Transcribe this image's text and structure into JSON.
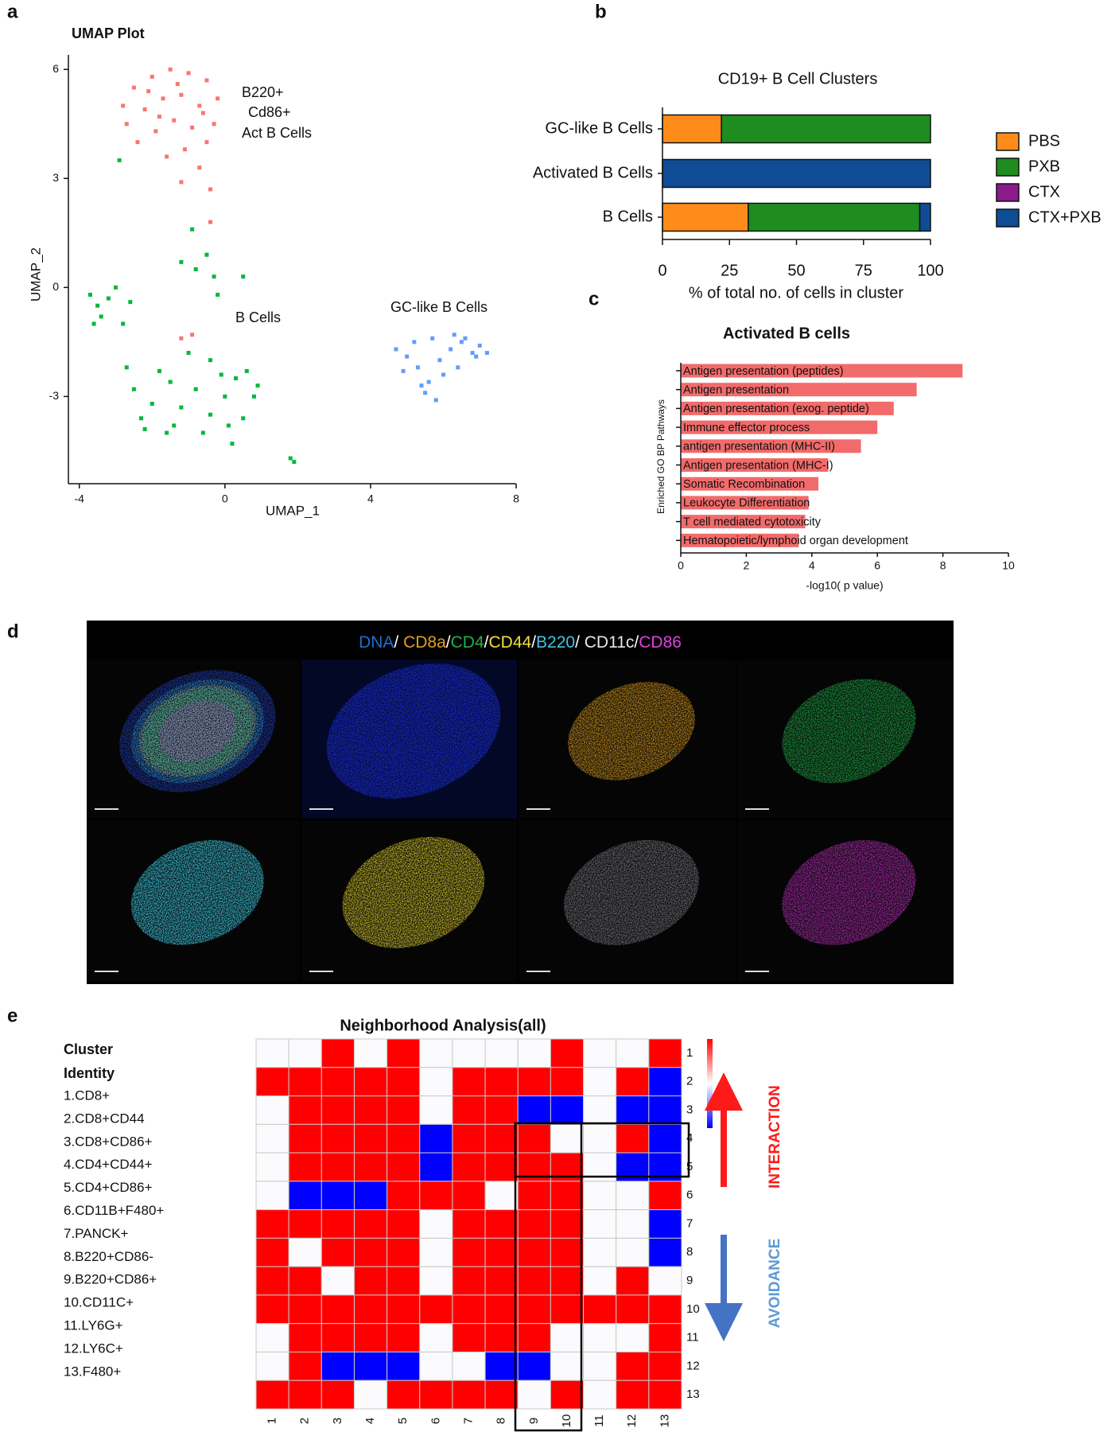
{
  "panel_labels": [
    "a",
    "b",
    "c",
    "d",
    "e"
  ],
  "chart_data": [
    {
      "type": "scatter",
      "title": "UMAP Plot",
      "x_label": "UMAP_1",
      "y_label": "UMAP_2",
      "xlim": [
        -4.3,
        8
      ],
      "ylim": [
        -5.4,
        6.4
      ],
      "xticks": [
        -4,
        0,
        4,
        8
      ],
      "yticks": [
        -3,
        0,
        3,
        6
      ],
      "annotations": [
        "B220+",
        "Cd86+",
        "Act B Cells",
        "B Cells",
        "GC-like B Cells"
      ],
      "series": [
        {
          "color": "#f8766d",
          "x": [
            -2.5,
            -2,
            -1.5,
            -1,
            -0.5,
            -0.2,
            -2.7,
            -2.2,
            -1.7,
            -1.2,
            -0.7,
            -0.3,
            -2.4,
            -1.9,
            -1.4,
            -0.9,
            -0.5,
            -1.6,
            -1.1,
            -0.7,
            -1.2,
            -0.4,
            -0.4,
            -0.9,
            -1.2,
            -2.8,
            -2.1,
            -1.3,
            -0.6,
            -1.8
          ],
          "y": [
            5.5,
            5.8,
            6,
            5.9,
            5.7,
            5.2,
            4.5,
            4.9,
            5.2,
            5.3,
            5,
            4.5,
            4,
            4.3,
            4.6,
            4.4,
            4,
            3.6,
            3.8,
            3.3,
            2.9,
            2.7,
            1.8,
            -1.3,
            -1.4,
            5,
            5.4,
            5.6,
            4.8,
            4.7
          ]
        },
        {
          "color": "#00ba38",
          "x": [
            -3.5,
            -3.2,
            -3,
            -3.4,
            -2.8,
            -2.6,
            -3.7,
            -1.2,
            -0.8,
            -0.5,
            -0.3,
            -0.9,
            -0.2,
            0.5,
            -2.5,
            -2,
            -1.5,
            -2.3,
            -1.2,
            -0.8,
            -0.4,
            0,
            0.3,
            0.5,
            0.8,
            -0.6,
            0.2,
            -1.8,
            -1,
            -0.4,
            0.6,
            -2.7,
            -1.6,
            1.8,
            1.9,
            -2.9,
            -3.6,
            -2.2,
            -1.4,
            0.1,
            0.9,
            -0.1
          ],
          "y": [
            -0.5,
            -0.3,
            0,
            -0.8,
            -1,
            -0.4,
            -0.2,
            0.7,
            0.5,
            0.9,
            0.3,
            1.6,
            -0.2,
            0.3,
            -2.8,
            -3.2,
            -2.6,
            -3.6,
            -3.3,
            -2.8,
            -3.5,
            -3,
            -2.5,
            -3.6,
            -3,
            -4,
            -4.3,
            -2.3,
            -1.8,
            -2,
            -2.3,
            -2.2,
            -4,
            -4.7,
            -4.8,
            3.5,
            -1,
            -3.9,
            -3.8,
            -3.8,
            -2.7,
            -2.4
          ]
        },
        {
          "color": "#619cff",
          "x": [
            4.7,
            5,
            5.3,
            5.6,
            5.9,
            6.2,
            6.5,
            6.8,
            7,
            7.2,
            5.5,
            6,
            6.4,
            5.2,
            5.7,
            6.3,
            4.9,
            5.8,
            6.6,
            5.4,
            6.9
          ],
          "y": [
            -1.7,
            -1.9,
            -2.2,
            -2.6,
            -2,
            -1.7,
            -1.5,
            -1.8,
            -1.6,
            -1.8,
            -2.9,
            -2.4,
            -2.2,
            -1.5,
            -1.4,
            -1.3,
            -2.3,
            -3.1,
            -1.4,
            -2.7,
            -1.9
          ]
        }
      ]
    },
    {
      "type": "bar",
      "orientation": "horizontal",
      "stacked": true,
      "title": "CD19+ B Cell Clusters",
      "x_label": "% of total no. of cells in cluster",
      "categories": [
        "GC-like B Cells",
        "Activated B Cells",
        "B Cells"
      ],
      "xlim": [
        0,
        100
      ],
      "xticks": [
        0,
        25,
        50,
        75,
        100
      ],
      "legend": "right",
      "series": [
        {
          "name": "PBS",
          "color": "#ff8c1a",
          "values": [
            22,
            0,
            32
          ]
        },
        {
          "name": "PXB",
          "color": "#1e8c1e",
          "values": [
            78,
            0,
            64
          ]
        },
        {
          "name": "CTX",
          "color": "#8b1a8b",
          "values": [
            0,
            0,
            0
          ]
        },
        {
          "name": "CTX+PXB",
          "color": "#0f4c96",
          "values": [
            0,
            100,
            4
          ]
        }
      ]
    },
    {
      "type": "bar",
      "orientation": "horizontal",
      "title": "Activated B cells",
      "x_label": "-log10( p value)",
      "y_label": "Enriched GO BP Pathways",
      "color": "#f26b6b",
      "categories": [
        "Antigen presentation (peptides)",
        "Antigen presentation",
        "Antigen presentation (exog. peptide)",
        "Immune effector process",
        "antigen presentation (MHC-II)",
        "Antigen presentation (MHC-I)",
        "Somatic Recombination",
        "Leukocyte Differentiation",
        "T cell mediated cytotoxicity",
        "Hematopoietic/lymphoid organ development"
      ],
      "values": [
        8.6,
        7.2,
        6.5,
        6.0,
        5.5,
        4.5,
        4.2,
        3.9,
        3.8,
        3.6
      ],
      "xlim": [
        0,
        10
      ],
      "xticks": [
        0,
        2,
        4,
        6,
        8,
        10
      ]
    },
    {
      "type": "heatmap",
      "title": "Neighborhood Analysis(all)",
      "x_categories": [
        1,
        2,
        3,
        4,
        5,
        6,
        7,
        8,
        9,
        10,
        11,
        12,
        13
      ],
      "y_categories": [
        1,
        2,
        3,
        4,
        5,
        6,
        7,
        8,
        9,
        10,
        11,
        12,
        13
      ],
      "colors": {
        "high": "#ff0000",
        "mid": "#fbfbfd",
        "low": "#0000ff"
      },
      "values": [
        [
          0,
          0,
          1,
          0,
          1,
          0,
          0,
          0,
          0,
          1,
          0,
          0,
          1
        ],
        [
          1,
          1,
          1,
          1,
          1,
          0,
          1,
          1,
          1,
          1,
          0,
          1,
          -1
        ],
        [
          0,
          1,
          1,
          1,
          1,
          0,
          1,
          1,
          -1,
          -1,
          0,
          -1,
          -1
        ],
        [
          0,
          1,
          1,
          1,
          1,
          -1,
          1,
          1,
          1,
          0,
          0,
          1,
          -1
        ],
        [
          0,
          1,
          1,
          1,
          1,
          -1,
          1,
          1,
          1,
          1,
          0,
          -1,
          -1
        ],
        [
          0,
          -1,
          -1,
          -1,
          1,
          1,
          1,
          0,
          1,
          1,
          0,
          0,
          1
        ],
        [
          1,
          1,
          1,
          1,
          1,
          0,
          1,
          1,
          1,
          1,
          0,
          0,
          -1
        ],
        [
          1,
          0,
          1,
          1,
          1,
          0,
          1,
          1,
          1,
          1,
          0,
          0,
          -1
        ],
        [
          1,
          1,
          0,
          1,
          1,
          0,
          1,
          1,
          1,
          1,
          0,
          1,
          0
        ],
        [
          1,
          1,
          1,
          1,
          1,
          1,
          1,
          1,
          1,
          1,
          1,
          1,
          1
        ],
        [
          0,
          1,
          1,
          1,
          1,
          0,
          1,
          1,
          1,
          0,
          0,
          0,
          1
        ],
        [
          0,
          1,
          -1,
          -1,
          -1,
          0,
          0,
          -1,
          -1,
          0,
          0,
          1,
          1
        ],
        [
          1,
          1,
          1,
          0,
          1,
          1,
          1,
          1,
          0,
          1,
          0,
          1,
          1
        ]
      ],
      "cluster_identity_title": [
        "Cluster",
        "Identity"
      ],
      "cluster_identity": [
        "1.CD8+",
        "2.CD8+CD44",
        "3.CD8+CD86+",
        "4.CD4+CD44+",
        "5.CD4+CD86+",
        "6.CD11B+F480+",
        "7.PANCK+",
        "8.B220+CD86-",
        "9.B220+CD86+",
        "10.CD11C+",
        "11.LY6G+",
        "12.LY6C+",
        "13.F480+"
      ],
      "annotations": [
        {
          "text": "INTERACTION",
          "color": "#ff1a1a"
        },
        {
          "text": "AVOIDANCE",
          "color": "#5b9bd5"
        }
      ]
    }
  ],
  "image_panel": {
    "title_segments": [
      {
        "text": "DNA",
        "color": "#1f6fd0"
      },
      {
        "text": "/ ",
        "color": "#ffffff"
      },
      {
        "text": "CD8a",
        "color": "#e0a020"
      },
      {
        "text": "/",
        "color": "#ffffff"
      },
      {
        "text": "CD4",
        "color": "#22b04a"
      },
      {
        "text": "/",
        "color": "#ffffff"
      },
      {
        "text": "CD44",
        "color": "#f0e040"
      },
      {
        "text": "/",
        "color": "#ffffff"
      },
      {
        "text": "B220",
        "color": "#3cc8e0"
      },
      {
        "text": "/ ",
        "color": "#ffffff"
      },
      {
        "text": "CD11c",
        "color": "#e8e8e8"
      },
      {
        "text": "/",
        "color": "#ffffff"
      },
      {
        "text": "CD86",
        "color": "#e040e0"
      }
    ]
  }
}
